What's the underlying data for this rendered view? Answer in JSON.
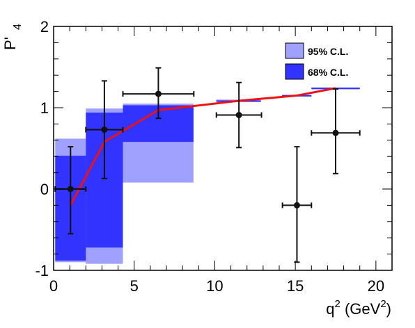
{
  "chart_data": {
    "type": "scatter",
    "title": "",
    "xlabel": "q",
    "xlabel_sup": "2",
    "xlabel_unit": " (GeV",
    "xlabel_unit_sup": "2",
    "xlabel_close": ")",
    "ylabel": "P'",
    "ylabel_sub": "4",
    "xlim": [
      0,
      21
    ],
    "ylim": [
      -1,
      2
    ],
    "xticks": [
      "0",
      "5",
      "10",
      "15",
      "20"
    ],
    "yticks": [
      "-1",
      "0",
      "1",
      "2"
    ],
    "grid": false,
    "legend_position": "top-right",
    "legend": [
      {
        "label": "95% C.L.",
        "color": "#a0a0ff"
      },
      {
        "label": "68% C.L.",
        "color": "#3333ff"
      }
    ],
    "colors": {
      "band95": "#a0a0ff",
      "band68": "#3333ff",
      "prediction_line": "#ee1111",
      "points": "#111111"
    },
    "bins": [
      {
        "xmin": 0.1,
        "xmax": 2.0,
        "cl95": [
          -0.9,
          0.62
        ],
        "cl68": [
          -0.88,
          0.41
        ]
      },
      {
        "xmin": 2.0,
        "xmax": 4.3,
        "cl95": [
          -0.92,
          0.99
        ],
        "cl68": [
          -0.72,
          0.94
        ]
      },
      {
        "xmin": 4.3,
        "xmax": 8.68,
        "cl95": [
          0.08,
          1.05
        ],
        "cl68": [
          0.58,
          1.03
        ]
      },
      {
        "xmin": 10.09,
        "xmax": 12.86,
        "cl95": [
          1.07,
          1.1
        ],
        "cl68": [
          1.08,
          1.09
        ]
      },
      {
        "xmin": 14.18,
        "xmax": 16.0,
        "cl95": [
          1.14,
          1.16
        ],
        "cl68": [
          1.145,
          1.155
        ]
      },
      {
        "xmin": 16.0,
        "xmax": 19.0,
        "cl95": [
          1.23,
          1.25
        ],
        "cl68": [
          1.235,
          1.245
        ]
      }
    ],
    "prediction": {
      "x": [
        1.05,
        3.15,
        6.5,
        11.5,
        15.1,
        17.5
      ],
      "y": [
        -0.2,
        0.58,
        0.97,
        1.085,
        1.15,
        1.24
      ]
    },
    "points": [
      {
        "x": 1.05,
        "y": 0.0,
        "xerr": 0.95,
        "yerr_low": 0.55,
        "yerr_high": 0.52
      },
      {
        "x": 3.15,
        "y": 0.73,
        "xerr": 1.15,
        "yerr_low": 0.6,
        "yerr_high": 0.6
      },
      {
        "x": 6.5,
        "y": 1.17,
        "xerr": 2.2,
        "yerr_low": 0.3,
        "yerr_high": 0.32
      },
      {
        "x": 11.5,
        "y": 0.91,
        "xerr": 1.4,
        "yerr_low": 0.4,
        "yerr_high": 0.4
      },
      {
        "x": 15.1,
        "y": -0.2,
        "xerr": 0.9,
        "yerr_low": 0.7,
        "yerr_high": 0.72
      },
      {
        "x": 17.5,
        "y": 0.69,
        "xerr": 1.5,
        "yerr_low": 0.5,
        "yerr_high": 0.54
      }
    ]
  }
}
